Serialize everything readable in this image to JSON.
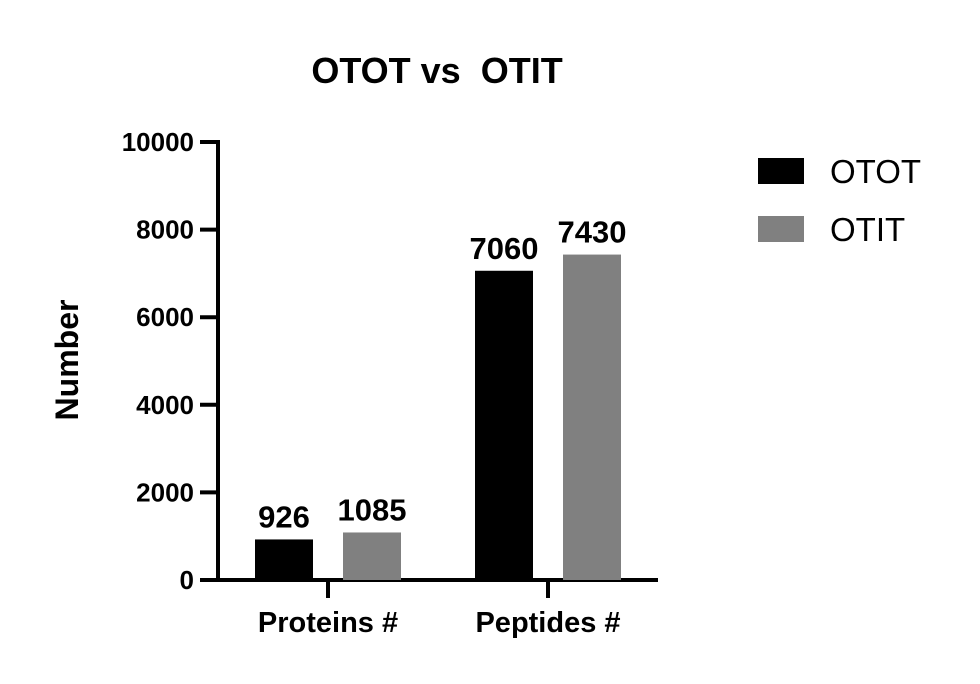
{
  "chart_data": {
    "type": "bar",
    "title": "OTOT vs  OTIT",
    "xlabel": "",
    "ylabel": "Number",
    "categories": [
      "Proteins #",
      "Peptides #"
    ],
    "series": [
      {
        "name": "OTOT",
        "color": "#000000",
        "values": [
          926,
          7060
        ]
      },
      {
        "name": "OTIT",
        "color": "#808080",
        "values": [
          1085,
          7430
        ]
      }
    ],
    "ylim": [
      0,
      10000
    ],
    "yticks": [
      0,
      2000,
      4000,
      6000,
      8000,
      10000
    ],
    "legend": "top-right",
    "grid": false
  }
}
